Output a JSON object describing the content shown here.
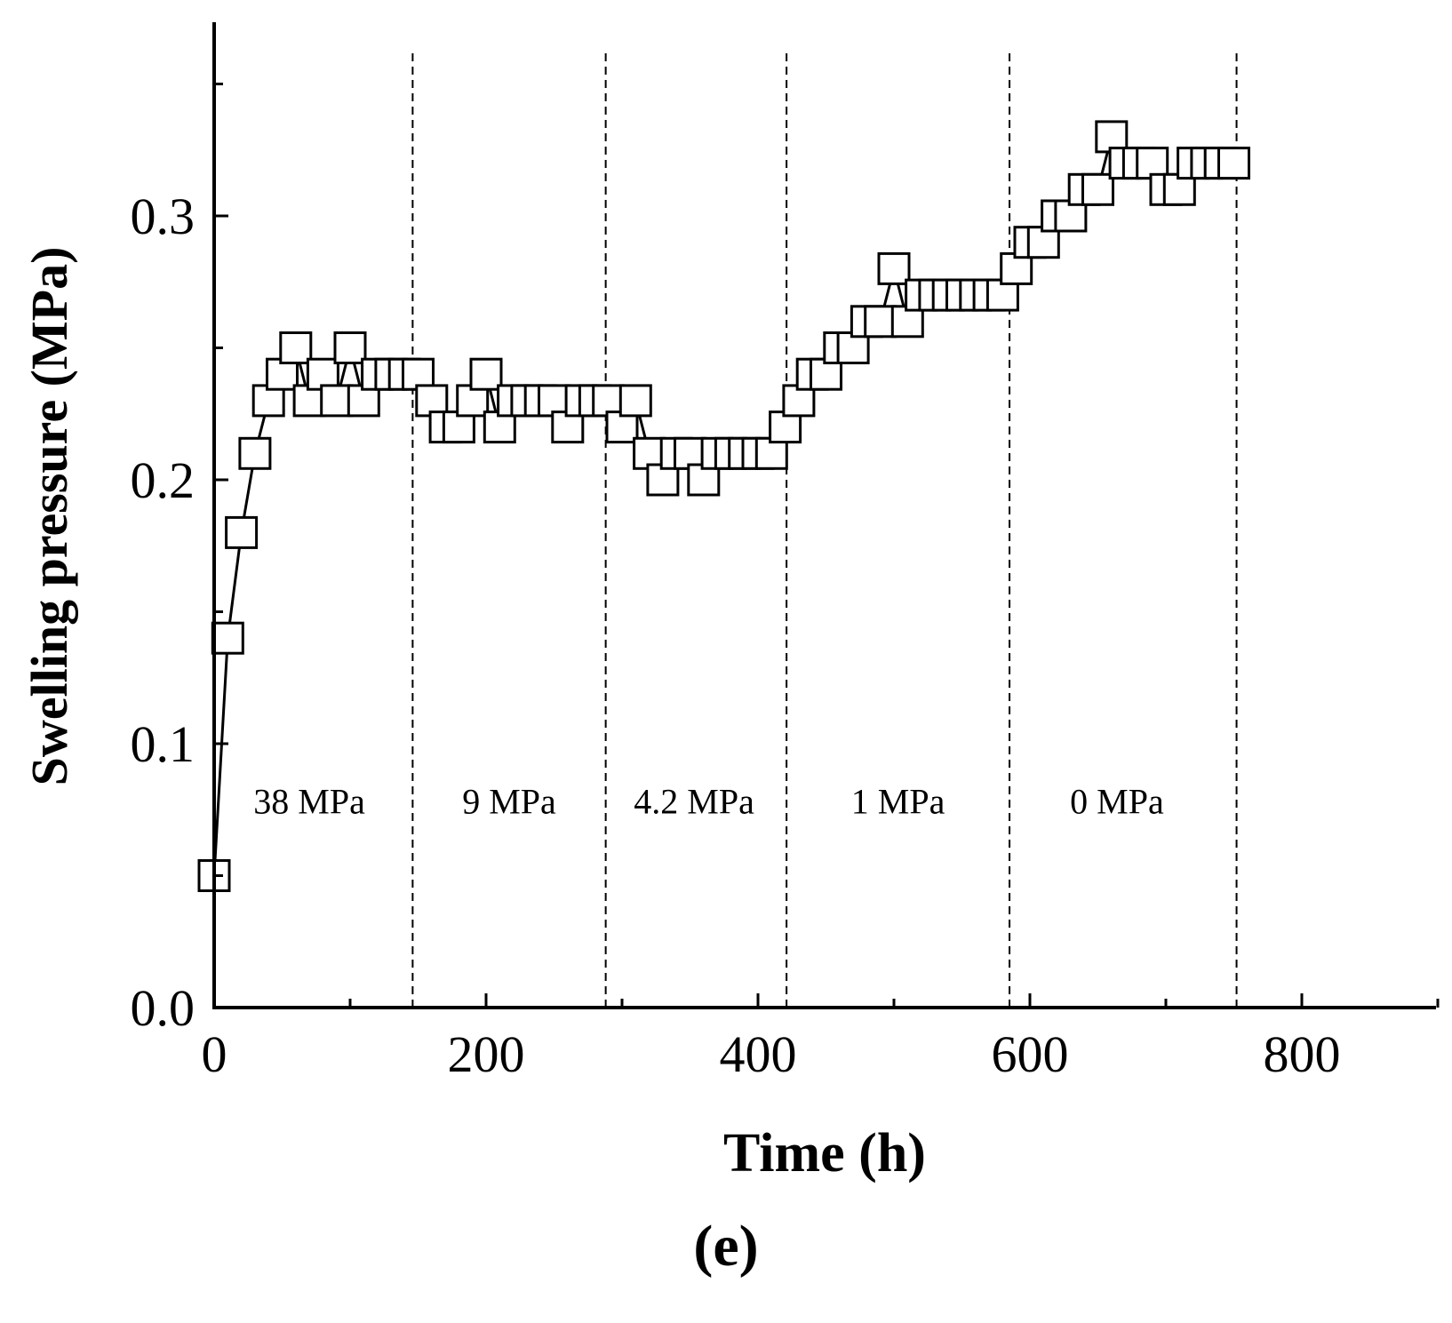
{
  "panel_label": "(e)",
  "chart_data": {
    "type": "scatter",
    "title": "",
    "xlabel": "Time (h)",
    "ylabel": "Swelling pressure (MPa)",
    "xlim": [
      0,
      900
    ],
    "ylim": [
      0,
      0.37
    ],
    "xticks": [
      0,
      200,
      400,
      600,
      800
    ],
    "xtick_labels": [
      "0",
      "200",
      "400",
      "600",
      "800"
    ],
    "yticks": [
      0.0,
      0.1,
      0.2,
      0.3
    ],
    "ytick_labels": [
      "0.0",
      "0.1",
      "0.2",
      "0.3"
    ],
    "grid": false,
    "marker": "open-square",
    "line": "connected",
    "series": [
      {
        "x": [
          0,
          10,
          20,
          30,
          40,
          50,
          60,
          70,
          80,
          90,
          100,
          110,
          120,
          130,
          140,
          150,
          160,
          170,
          180,
          190,
          200,
          210,
          220,
          230,
          240,
          250,
          260,
          270,
          280,
          290,
          300,
          310,
          320,
          330,
          340,
          350,
          360,
          370,
          380,
          390,
          400,
          410,
          420,
          430,
          440,
          450,
          460,
          470,
          480,
          490,
          500,
          510,
          520,
          530,
          540,
          550,
          560,
          570,
          580,
          590,
          600,
          610,
          620,
          630,
          640,
          650,
          660,
          670,
          680,
          690,
          700,
          710,
          720,
          730,
          740,
          750
        ],
        "y": [
          0.05,
          0.14,
          0.18,
          0.21,
          0.23,
          0.24,
          0.25,
          0.23,
          0.24,
          0.23,
          0.25,
          0.23,
          0.24,
          0.24,
          0.24,
          0.24,
          0.23,
          0.22,
          0.22,
          0.23,
          0.24,
          0.22,
          0.23,
          0.23,
          0.23,
          0.23,
          0.22,
          0.23,
          0.23,
          0.23,
          0.22,
          0.23,
          0.21,
          0.2,
          0.21,
          0.21,
          0.2,
          0.21,
          0.21,
          0.21,
          0.21,
          0.21,
          0.22,
          0.23,
          0.24,
          0.24,
          0.25,
          0.25,
          0.26,
          0.26,
          0.28,
          0.26,
          0.27,
          0.27,
          0.27,
          0.27,
          0.27,
          0.27,
          0.27,
          0.28,
          0.29,
          0.29,
          0.3,
          0.3,
          0.31,
          0.31,
          0.33,
          0.32,
          0.32,
          0.32,
          0.31,
          0.31,
          0.32,
          0.32,
          0.32,
          0.32
        ]
      }
    ],
    "stage_boundaries_x": [
      146,
      288,
      421,
      585,
      752
    ],
    "stage_labels": [
      {
        "text": "38 MPa",
        "x": 70
      },
      {
        "text": "9 MPa",
        "x": 217
      },
      {
        "text": "4.2 MPa",
        "x": 353
      },
      {
        "text": "1 MPa",
        "x": 503
      },
      {
        "text": "0 MPa",
        "x": 664
      }
    ],
    "stage_label_y": 0.079
  }
}
